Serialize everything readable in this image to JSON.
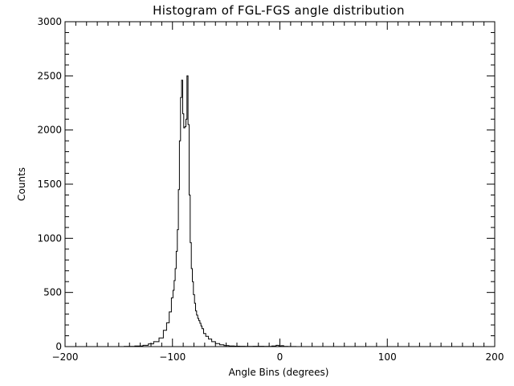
{
  "chart_data": {
    "type": "line",
    "title": "Histogram of FGL-FGS angle distribution",
    "xlabel": "Angle Bins (degrees)",
    "ylabel": "Counts",
    "xlim": [
      -200,
      200
    ],
    "ylim": [
      0,
      3000
    ],
    "x_ticks": [
      -200,
      -100,
      0,
      100,
      200
    ],
    "x_tick_labels": [
      "−200",
      "−100",
      "0",
      "100",
      "200"
    ],
    "y_ticks": [
      0,
      500,
      1000,
      1500,
      2000,
      2500,
      3000
    ],
    "y_tick_labels": [
      "0",
      "500",
      "1000",
      "1500",
      "2000",
      "2500",
      "3000"
    ],
    "x_minor_step": 10,
    "y_minor_step": 100,
    "grid": false,
    "legend": "none",
    "line_style": "histogram-step",
    "line_color": "#000000",
    "series": [
      {
        "x": [
          -150,
          -140,
          -130,
          -125,
          -120,
          -115,
          -110,
          -107,
          -104,
          -102,
          -100,
          -99,
          -98,
          -97,
          -96,
          -95,
          -94,
          -93,
          -92,
          -91,
          -90,
          -89,
          -88,
          -87,
          -86,
          -85,
          -84,
          -83,
          -82,
          -81,
          -80,
          -79,
          -78,
          -77,
          -76,
          -75,
          -74,
          -73,
          -72,
          -70,
          -68,
          -65,
          -62,
          -58,
          -54,
          -50,
          -45,
          -40,
          -35,
          -30,
          -20,
          -10,
          -5,
          -2,
          0,
          2,
          5,
          10,
          20,
          40,
          60,
          80,
          100,
          150,
          200
        ],
        "y": [
          0,
          2,
          5,
          12,
          25,
          45,
          80,
          150,
          220,
          320,
          450,
          520,
          610,
          720,
          880,
          1080,
          1450,
          1900,
          2300,
          2460,
          2150,
          2020,
          2030,
          2100,
          2500,
          2050,
          1400,
          960,
          720,
          600,
          480,
          400,
          330,
          290,
          260,
          240,
          215,
          190,
          165,
          120,
          95,
          70,
          45,
          28,
          16,
          10,
          6,
          4,
          3,
          2,
          3,
          2,
          6,
          12,
          4,
          8,
          2,
          1,
          0,
          0,
          0,
          0,
          0,
          0,
          0
        ]
      }
    ]
  }
}
